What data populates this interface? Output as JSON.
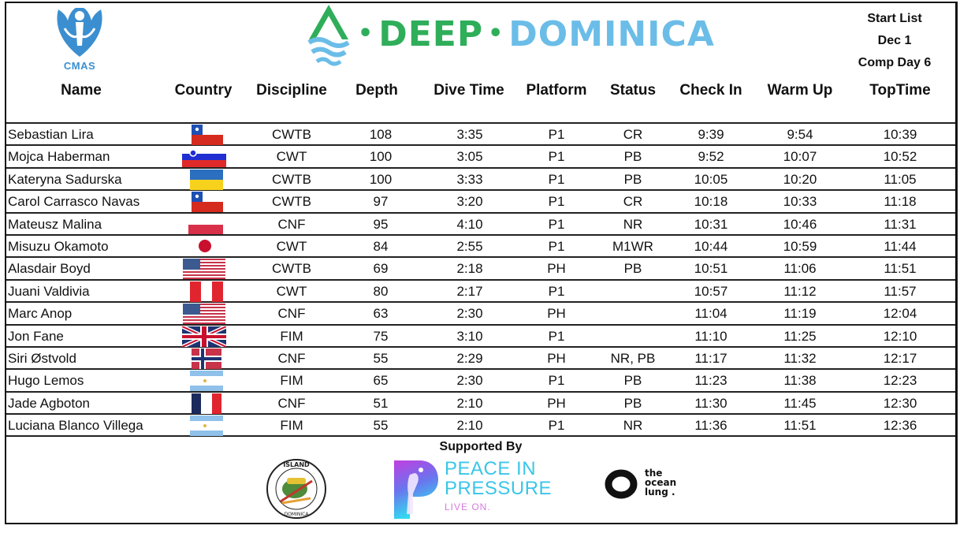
{
  "header": {
    "org_logo_text": "CMAS",
    "brand": {
      "part1": "DEEP",
      "part2": "DOMINICA",
      "separator": "•"
    },
    "meta": {
      "title": "Start List",
      "date": "Dec 1",
      "comp_day": "Comp Day 6"
    }
  },
  "columns": [
    "Name",
    "Country",
    "Discipline",
    "Depth",
    "Dive Time",
    "Platform",
    "Status",
    "Check In",
    "Warm Up",
    "TopTime"
  ],
  "rows": [
    {
      "name": "Sebastian Lira",
      "country": "chile",
      "discipline": "CWTB",
      "depth": "108",
      "dive_time": "3:35",
      "platform": "P1",
      "status": "CR",
      "check_in": "9:39",
      "warm_up": "9:54",
      "top_time": "10:39"
    },
    {
      "name": "Mojca Haberman",
      "country": "slovenia",
      "discipline": "CWT",
      "depth": "100",
      "dive_time": "3:05",
      "platform": "P1",
      "status": "PB",
      "check_in": "9:52",
      "warm_up": "10:07",
      "top_time": "10:52"
    },
    {
      "name": "Kateryna Sadurska",
      "country": "ukraine",
      "discipline": "CWTB",
      "depth": "100",
      "dive_time": "3:33",
      "platform": "P1",
      "status": "PB",
      "check_in": "10:05",
      "warm_up": "10:20",
      "top_time": "11:05"
    },
    {
      "name": "Carol Carrasco Navas",
      "country": "chile",
      "discipline": "CWTB",
      "depth": "97",
      "dive_time": "3:20",
      "platform": "P1",
      "status": "CR",
      "check_in": "10:18",
      "warm_up": "10:33",
      "top_time": "11:18"
    },
    {
      "name": "Mateusz Malina",
      "country": "poland",
      "discipline": "CNF",
      "depth": "95",
      "dive_time": "4:10",
      "platform": "P1",
      "status": "NR",
      "check_in": "10:31",
      "warm_up": "10:46",
      "top_time": "11:31"
    },
    {
      "name": "Misuzu Okamoto",
      "country": "japan",
      "discipline": "CWT",
      "depth": "84",
      "dive_time": "2:55",
      "platform": "P1",
      "status": "M1WR",
      "check_in": "10:44",
      "warm_up": "10:59",
      "top_time": "11:44"
    },
    {
      "name": "Alasdair Boyd",
      "country": "usa",
      "discipline": "CWTB",
      "depth": "69",
      "dive_time": "2:18",
      "platform": "PH",
      "status": "PB",
      "check_in": "10:51",
      "warm_up": "11:06",
      "top_time": "11:51"
    },
    {
      "name": "Juani Valdivia",
      "country": "peru",
      "discipline": "CWT",
      "depth": "80",
      "dive_time": "2:17",
      "platform": "P1",
      "status": "",
      "check_in": "10:57",
      "warm_up": "11:12",
      "top_time": "11:57"
    },
    {
      "name": "Marc Anop",
      "country": "usa",
      "discipline": "CNF",
      "depth": "63",
      "dive_time": "2:30",
      "platform": "PH",
      "status": "",
      "check_in": "11:04",
      "warm_up": "11:19",
      "top_time": "12:04"
    },
    {
      "name": "Jon Fane",
      "country": "uk",
      "discipline": "FIM",
      "depth": "75",
      "dive_time": "3:10",
      "platform": "P1",
      "status": "",
      "check_in": "11:10",
      "warm_up": "11:25",
      "top_time": "12:10"
    },
    {
      "name": "Siri Østvold",
      "country": "norway",
      "discipline": "CNF",
      "depth": "55",
      "dive_time": "2:29",
      "platform": "PH",
      "status": "NR, PB",
      "check_in": "11:17",
      "warm_up": "11:32",
      "top_time": "12:17"
    },
    {
      "name": "Hugo Lemos",
      "country": "argentina",
      "discipline": "FIM",
      "depth": "65",
      "dive_time": "2:30",
      "platform": "P1",
      "status": "PB",
      "check_in": "11:23",
      "warm_up": "11:38",
      "top_time": "12:23"
    },
    {
      "name": "Jade Agboton",
      "country": "france",
      "discipline": "CNF",
      "depth": "51",
      "dive_time": "2:10",
      "platform": "PH",
      "status": "PB",
      "check_in": "11:30",
      "warm_up": "11:45",
      "top_time": "12:30"
    },
    {
      "name": "Luciana Blanco Villega",
      "country": "argentina",
      "discipline": "FIM",
      "depth": "55",
      "dive_time": "2:10",
      "platform": "P1",
      "status": "NR",
      "check_in": "11:36",
      "warm_up": "11:51",
      "top_time": "12:36"
    }
  ],
  "sponsors": {
    "heading": "Supported By",
    "items": [
      {
        "name": "Nature Island Dive Dominica",
        "icon": "nature-island-dive-logo"
      },
      {
        "name": "Peace In Pressure",
        "line1": "PEACE IN",
        "line2": "PRESSURE",
        "tagline": "LIVE ON.",
        "icon": "peace-in-pressure-logo"
      },
      {
        "name": "the ocean lung",
        "line1": "the",
        "line2": "ocean",
        "line3": "lung .",
        "icon": "ocean-lung-logo"
      }
    ]
  },
  "colors": {
    "brand_green": "#2fae5a",
    "brand_blue": "#6bbde8",
    "cmas_blue": "#3b8fd0",
    "pip_cyan": "#3ac6e8",
    "pip_pink": "#d77be0"
  }
}
